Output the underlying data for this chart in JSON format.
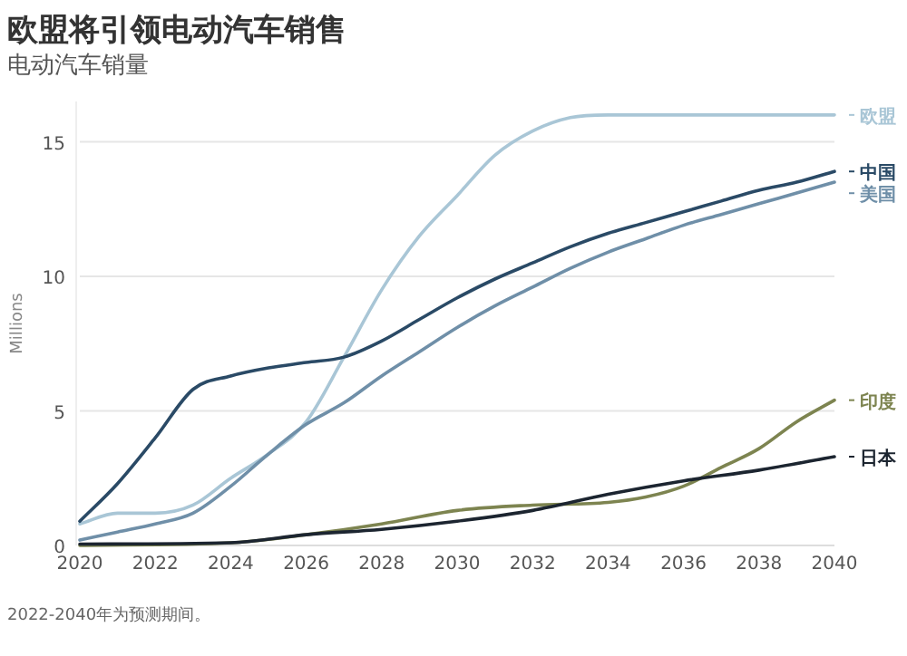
{
  "chart_data": {
    "type": "line",
    "title": "欧盟将引领电动汽车销售",
    "subtitle": "电动汽车销量",
    "ylabel": "Millions",
    "xlim": [
      2020,
      2040
    ],
    "xticks": [
      2020,
      2022,
      2024,
      2026,
      2028,
      2030,
      2032,
      2034,
      2036,
      2038,
      2040
    ],
    "ylim": [
      0,
      16.5
    ],
    "yticks": [
      0,
      5,
      10,
      15
    ],
    "grid": "y",
    "legend": "right",
    "marker": "none",
    "line_style": "solid",
    "series": [
      {
        "name": "欧盟",
        "color": "#a9c6d6",
        "x": [
          2020,
          2021,
          2022,
          2023,
          2024,
          2025,
          2026,
          2027,
          2028,
          2029,
          2030,
          2031,
          2032,
          2033,
          2034,
          2036,
          2038,
          2040
        ],
        "values": [
          0.8,
          1.2,
          1.2,
          1.5,
          2.5,
          3.4,
          4.6,
          7,
          9.5,
          11.5,
          13,
          14.5,
          15.4,
          15.9,
          16,
          16,
          16,
          16
        ]
      },
      {
        "name": "中国",
        "color": "#2a4a66",
        "x": [
          2020,
          2021,
          2022,
          2023,
          2024,
          2025,
          2026,
          2027,
          2028,
          2029,
          2030,
          2031,
          2032,
          2033,
          2034,
          2035,
          2036,
          2037,
          2038,
          2039,
          2040
        ],
        "values": [
          0.9,
          2.3,
          4,
          5.8,
          6.3,
          6.6,
          6.8,
          7,
          7.6,
          8.4,
          9.2,
          9.9,
          10.5,
          11.1,
          11.6,
          12,
          12.4,
          12.8,
          13.2,
          13.5,
          13.9
        ]
      },
      {
        "name": "美国",
        "color": "#6f8fa8",
        "x": [
          2020,
          2021,
          2022,
          2023,
          2024,
          2025,
          2026,
          2027,
          2028,
          2029,
          2030,
          2031,
          2032,
          2033,
          2034,
          2035,
          2036,
          2037,
          2038,
          2039,
          2040
        ],
        "values": [
          0.2,
          0.5,
          0.8,
          1.2,
          2.2,
          3.4,
          4.5,
          5.3,
          6.3,
          7.2,
          8.1,
          8.9,
          9.6,
          10.3,
          10.9,
          11.4,
          11.9,
          12.3,
          12.7,
          13.1,
          13.5
        ]
      },
      {
        "name": "印度",
        "color": "#7d8450",
        "x": [
          2020,
          2024,
          2026,
          2028,
          2030,
          2032,
          2034,
          2035,
          2036,
          2037,
          2038,
          2039,
          2040
        ],
        "values": [
          0,
          0.1,
          0.4,
          0.8,
          1.3,
          1.5,
          1.6,
          1.8,
          2.2,
          2.9,
          3.6,
          4.6,
          5.4
        ]
      },
      {
        "name": "日本",
        "color": "#1c2530",
        "x": [
          2020,
          2024,
          2026,
          2028,
          2030,
          2032,
          2034,
          2036,
          2038,
          2040
        ],
        "values": [
          0.05,
          0.1,
          0.4,
          0.6,
          0.9,
          1.3,
          1.9,
          2.4,
          2.8,
          3.3
        ]
      }
    ],
    "annotations": [
      "2022-2040年为预测期间。"
    ]
  }
}
